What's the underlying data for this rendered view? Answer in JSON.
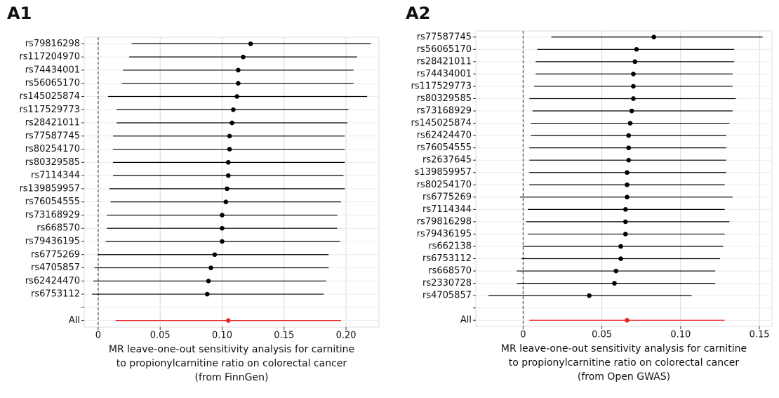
{
  "chart_data": [
    {
      "type": "forest",
      "title": "A1",
      "xlabel": [
        "MR leave-one-out sensitivity analysis for carnitine",
        "to propionylcarnitine ratio on colorectal cancer",
        "(from FinnGen)"
      ],
      "categories": [
        "rs79816298",
        "rs117204970",
        "rs74434001",
        "rs56065170",
        "rs145025874",
        "rs117529773",
        "rs28421011",
        "rs77587745",
        "rs80254170",
        "rs80329585",
        "rs7114344",
        "rs139859957",
        "rs76054555",
        "rs73168929",
        "rs668570",
        "rs79436195",
        "rs6775269",
        "rs4705857",
        "rs62424470",
        "rs6753112",
        null,
        "All"
      ],
      "values": [
        0.123,
        0.117,
        0.113,
        0.113,
        0.112,
        0.109,
        0.108,
        0.106,
        0.106,
        0.105,
        0.105,
        0.104,
        0.103,
        0.1,
        0.1,
        0.1,
        0.094,
        0.091,
        0.089,
        0.088,
        null,
        0.105
      ],
      "lower": [
        0.027,
        0.025,
        0.02,
        0.019,
        0.008,
        0.015,
        0.015,
        0.012,
        0.012,
        0.012,
        0.012,
        0.009,
        0.01,
        0.007,
        0.007,
        0.006,
        0.0,
        -0.003,
        -0.004,
        -0.005,
        null,
        0.014
      ],
      "upper": [
        0.22,
        0.209,
        0.206,
        0.206,
        0.217,
        0.202,
        0.201,
        0.199,
        0.199,
        0.199,
        0.198,
        0.199,
        0.196,
        0.193,
        0.193,
        0.195,
        0.186,
        0.186,
        0.184,
        0.182,
        null,
        0.196
      ],
      "color": "#000000",
      "summary_color": "#e8282b",
      "vline": 0,
      "xlim": [
        -0.0113,
        0.2266
      ],
      "xticks": [
        0,
        0.05,
        {
          "value": 0.1,
          "label": "0.10"
        },
        0.15,
        {
          "value": 0.2,
          "label": "0.20"
        }
      ],
      "grid": true
    },
    {
      "type": "forest",
      "title": "A2",
      "xlabel": [
        "MR leave-one-out sensitivity analysis for carnitine",
        "to propionylcarnitine ratio on colorectal cancer",
        "(from Open GWAS)"
      ],
      "categories": [
        "rs77587745",
        "rs56065170",
        "rs28421011",
        "rs74434001",
        "rs117529773",
        "rs80329585",
        "rs73168929",
        "rs145025874",
        "rs62424470",
        "rs76054555",
        "rs2637645",
        "s139859957",
        "rs80254170",
        "rs6775269",
        "rs7114344",
        "rs79816298",
        "rs79436195",
        "rs662138",
        "rs6753112",
        "rs668570",
        "rs2330728",
        "rs4705857",
        null,
        "All"
      ],
      "values": [
        0.083,
        0.072,
        0.071,
        0.07,
        0.07,
        0.07,
        0.069,
        0.068,
        0.067,
        0.067,
        0.067,
        0.066,
        0.066,
        0.066,
        0.065,
        0.065,
        0.065,
        0.062,
        0.062,
        0.059,
        0.058,
        0.042,
        null,
        0.066
      ],
      "lower": [
        0.018,
        0.009,
        0.008,
        0.008,
        0.007,
        0.004,
        0.006,
        0.005,
        0.005,
        0.004,
        0.004,
        0.004,
        0.004,
        -0.002,
        0.003,
        0.002,
        0.003,
        0.0,
        -0.001,
        -0.004,
        -0.004,
        -0.022,
        null,
        0.004
      ],
      "upper": [
        0.152,
        0.134,
        0.134,
        0.133,
        0.133,
        0.135,
        0.133,
        0.131,
        0.129,
        0.129,
        0.129,
        0.129,
        0.128,
        0.133,
        0.128,
        0.131,
        0.128,
        0.127,
        0.125,
        0.122,
        0.122,
        0.107,
        null,
        0.128
      ],
      "color": "#000000",
      "summary_color": "#e8282b",
      "vline": 0,
      "xlim": [
        -0.03,
        0.158
      ],
      "xticks": [
        0,
        0.05,
        {
          "value": 0.1,
          "label": "0.10"
        },
        0.15
      ],
      "grid": true
    }
  ]
}
